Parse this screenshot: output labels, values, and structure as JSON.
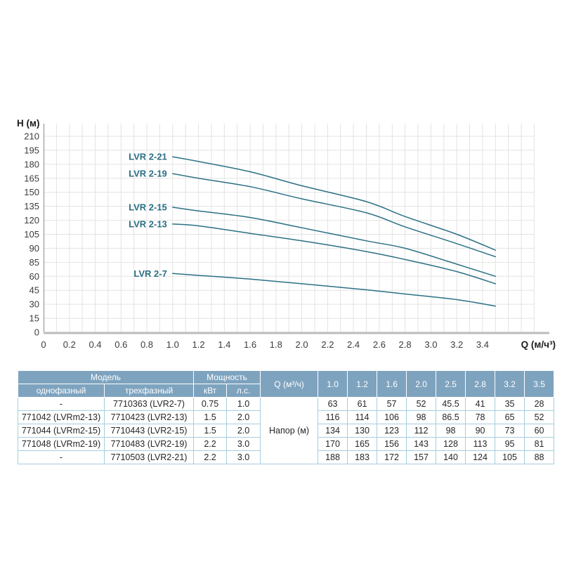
{
  "chart": {
    "y_axis_title": "H (м)",
    "x_axis_title": "Q (м/ч³)",
    "y_tick_labels": [
      "210",
      "195",
      "180",
      "165",
      "150",
      "135",
      "120",
      "105",
      "90",
      "85",
      "60",
      "45",
      "30",
      "15",
      "0"
    ],
    "x_tick_labels": [
      "0",
      "0.2",
      "0.4",
      "0.6",
      "0.8",
      "1.0",
      "1.2",
      "1.4",
      "1.6",
      "1.8",
      "2.0",
      "2.2",
      "2.4",
      "2.6",
      "2.8",
      "3.0",
      "3.2",
      "3.4"
    ]
  },
  "chart_data": {
    "type": "line",
    "title": "",
    "xlabel": "Q (м/ч³)",
    "ylabel": "H (м)",
    "x": [
      1.0,
      1.2,
      1.6,
      2.0,
      2.5,
      2.8,
      3.2,
      3.5
    ],
    "series": [
      {
        "name": "LVR 2-21",
        "values": [
          188,
          183,
          172,
          157,
          140,
          124,
          105,
          88
        ]
      },
      {
        "name": "LVR 2-19",
        "values": [
          170,
          165,
          156,
          143,
          128,
          113,
          95,
          81
        ]
      },
      {
        "name": "LVR 2-15",
        "values": [
          134,
          130,
          123,
          112,
          98,
          90,
          73,
          60
        ]
      },
      {
        "name": "LVR 2-13",
        "values": [
          116,
          114,
          106,
          98,
          86.5,
          78,
          65,
          52
        ]
      },
      {
        "name": "LVR 2-7",
        "values": [
          63,
          61,
          57,
          52,
          45.5,
          41,
          35,
          28
        ]
      }
    ],
    "xlim": [
      0,
      3.8
    ],
    "ylim": [
      0,
      225
    ],
    "grid": true,
    "legend_position": "inline-left-of-curves",
    "x_tick_labels": [
      "0",
      "0.2",
      "0.4",
      "0.6",
      "0.8",
      "1.0",
      "1.2",
      "1.4",
      "1.6",
      "1.8",
      "2.0",
      "2.2",
      "2.4",
      "2.6",
      "2.8",
      "3.0",
      "3.2",
      "3.4"
    ],
    "y_tick_labels": [
      "210",
      "195",
      "180",
      "165",
      "150",
      "135",
      "120",
      "105",
      "90",
      "85",
      "60",
      "45",
      "30",
      "15",
      "0"
    ]
  },
  "colors": {
    "curve": "#2b7085",
    "series_label": "#2b6f84",
    "grid": "#e3e3e3",
    "y_axis_line": "#9a9a9a",
    "x_axis_line": "#bbbbbb",
    "tick_text": "#3c3c3c",
    "axis_title_text": "#1c1c1c",
    "table_header_bg": "#7ea3bf",
    "table_border": "#a6cedd"
  },
  "table": {
    "header": {
      "model": "Модель",
      "power": "Мощность",
      "q": "Q (м³/ч)",
      "single_phase": "однофазный",
      "three_phase": "трехфазный",
      "kw": "кВт",
      "hp": "л.с."
    },
    "q_values": [
      "1.0",
      "1.2",
      "1.6",
      "2.0",
      "2.5",
      "2.8",
      "3.2",
      "3.5"
    ],
    "napor_label": "Напор (м)",
    "rows": [
      {
        "single": "-",
        "three": "7710363 (LVR2-7)",
        "kw": "0.75",
        "hp": "1.0",
        "heads": [
          "63",
          "61",
          "57",
          "52",
          "45.5",
          "41",
          "35",
          "28"
        ]
      },
      {
        "single": "771042 (LVRm2-13)",
        "three": "7710423 (LVR2-13)",
        "kw": "1.5",
        "hp": "2.0",
        "heads": [
          "116",
          "114",
          "106",
          "98",
          "86.5",
          "78",
          "65",
          "52"
        ]
      },
      {
        "single": "771044 (LVRm2-15)",
        "three": "7710443 (LVR2-15)",
        "kw": "1.5",
        "hp": "2.0",
        "heads": [
          "134",
          "130",
          "123",
          "112",
          "98",
          "90",
          "73",
          "60"
        ]
      },
      {
        "single": "771048 (LVRm2-19)",
        "three": "7710483 (LVR2-19)",
        "kw": "2.2",
        "hp": "3.0",
        "heads": [
          "170",
          "165",
          "156",
          "143",
          "128",
          "113",
          "95",
          "81"
        ]
      },
      {
        "single": "-",
        "three": "7710503 (LVR2-21)",
        "kw": "2.2",
        "hp": "3.0",
        "heads": [
          "188",
          "183",
          "172",
          "157",
          "140",
          "124",
          "105",
          "88"
        ]
      }
    ]
  }
}
